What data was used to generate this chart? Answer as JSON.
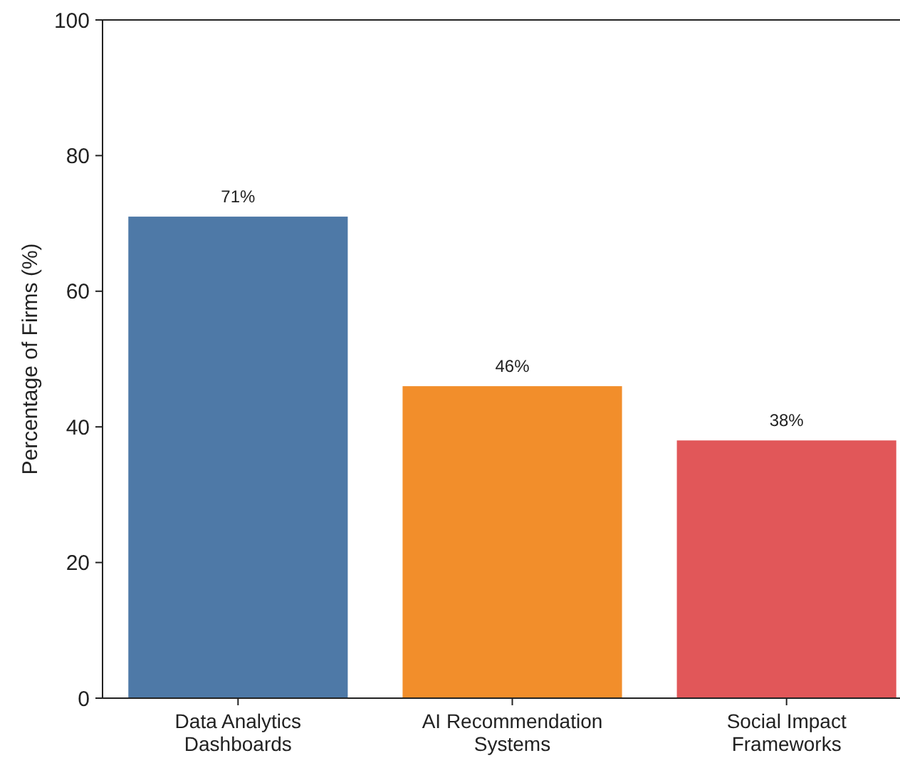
{
  "chart_data": {
    "type": "bar",
    "ylabel": "Percentage of Firms (%)",
    "categories": [
      "Data Analytics\nDashboards",
      "AI Recommendation\nSystems",
      "Social Impact\nFrameworks"
    ],
    "values": [
      71,
      46,
      38
    ],
    "colors": [
      "#4e79a7",
      "#f28e2b",
      "#e15759"
    ],
    "value_labels": [
      "71%",
      "46%",
      "38%"
    ],
    "ylim": [
      0,
      100
    ],
    "yticks": [
      0,
      20,
      40,
      60,
      80,
      100
    ]
  }
}
